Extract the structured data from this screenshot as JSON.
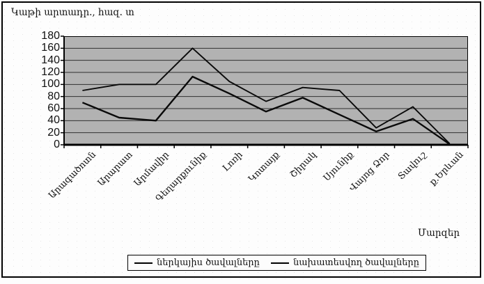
{
  "title": "Կաթի արտադր., հազ. տ",
  "xaxis_title": "Մարզեր",
  "legend": [
    {
      "label": "ներկայիս ծավալները"
    },
    {
      "label": "նախատեսվող ծավալները"
    }
  ],
  "chart_data": {
    "type": "line",
    "title": "Կաթի արտադր., հազ. տ",
    "xlabel": "Մարզեր",
    "ylabel": "",
    "ylim": [
      0,
      180
    ],
    "yticks": [
      0,
      20,
      40,
      60,
      80,
      100,
      120,
      140,
      160,
      180
    ],
    "grid": true,
    "legend_position": "bottom",
    "plot_bg_color": "#b2b2b2",
    "line_color": "#0a0a0a",
    "categories": [
      "Արագածոտն",
      "Արարատ",
      "Արմավիր",
      "Գեղարքունիք",
      "Լոռի",
      "Կոտայք",
      "Շիրակ",
      "Սյունիք",
      "Վայոց Ձոր",
      "Տավուշ",
      "ք.Երևան"
    ],
    "series": [
      {
        "name": "ներկայիս ծավալները",
        "values": [
          70,
          45,
          40,
          113,
          85,
          55,
          78,
          50,
          22,
          43,
          1
        ]
      },
      {
        "name": "նախատեսվող ծավալները",
        "values": [
          90,
          100,
          100,
          160,
          105,
          72,
          95,
          90,
          28,
          63,
          2
        ]
      }
    ]
  }
}
